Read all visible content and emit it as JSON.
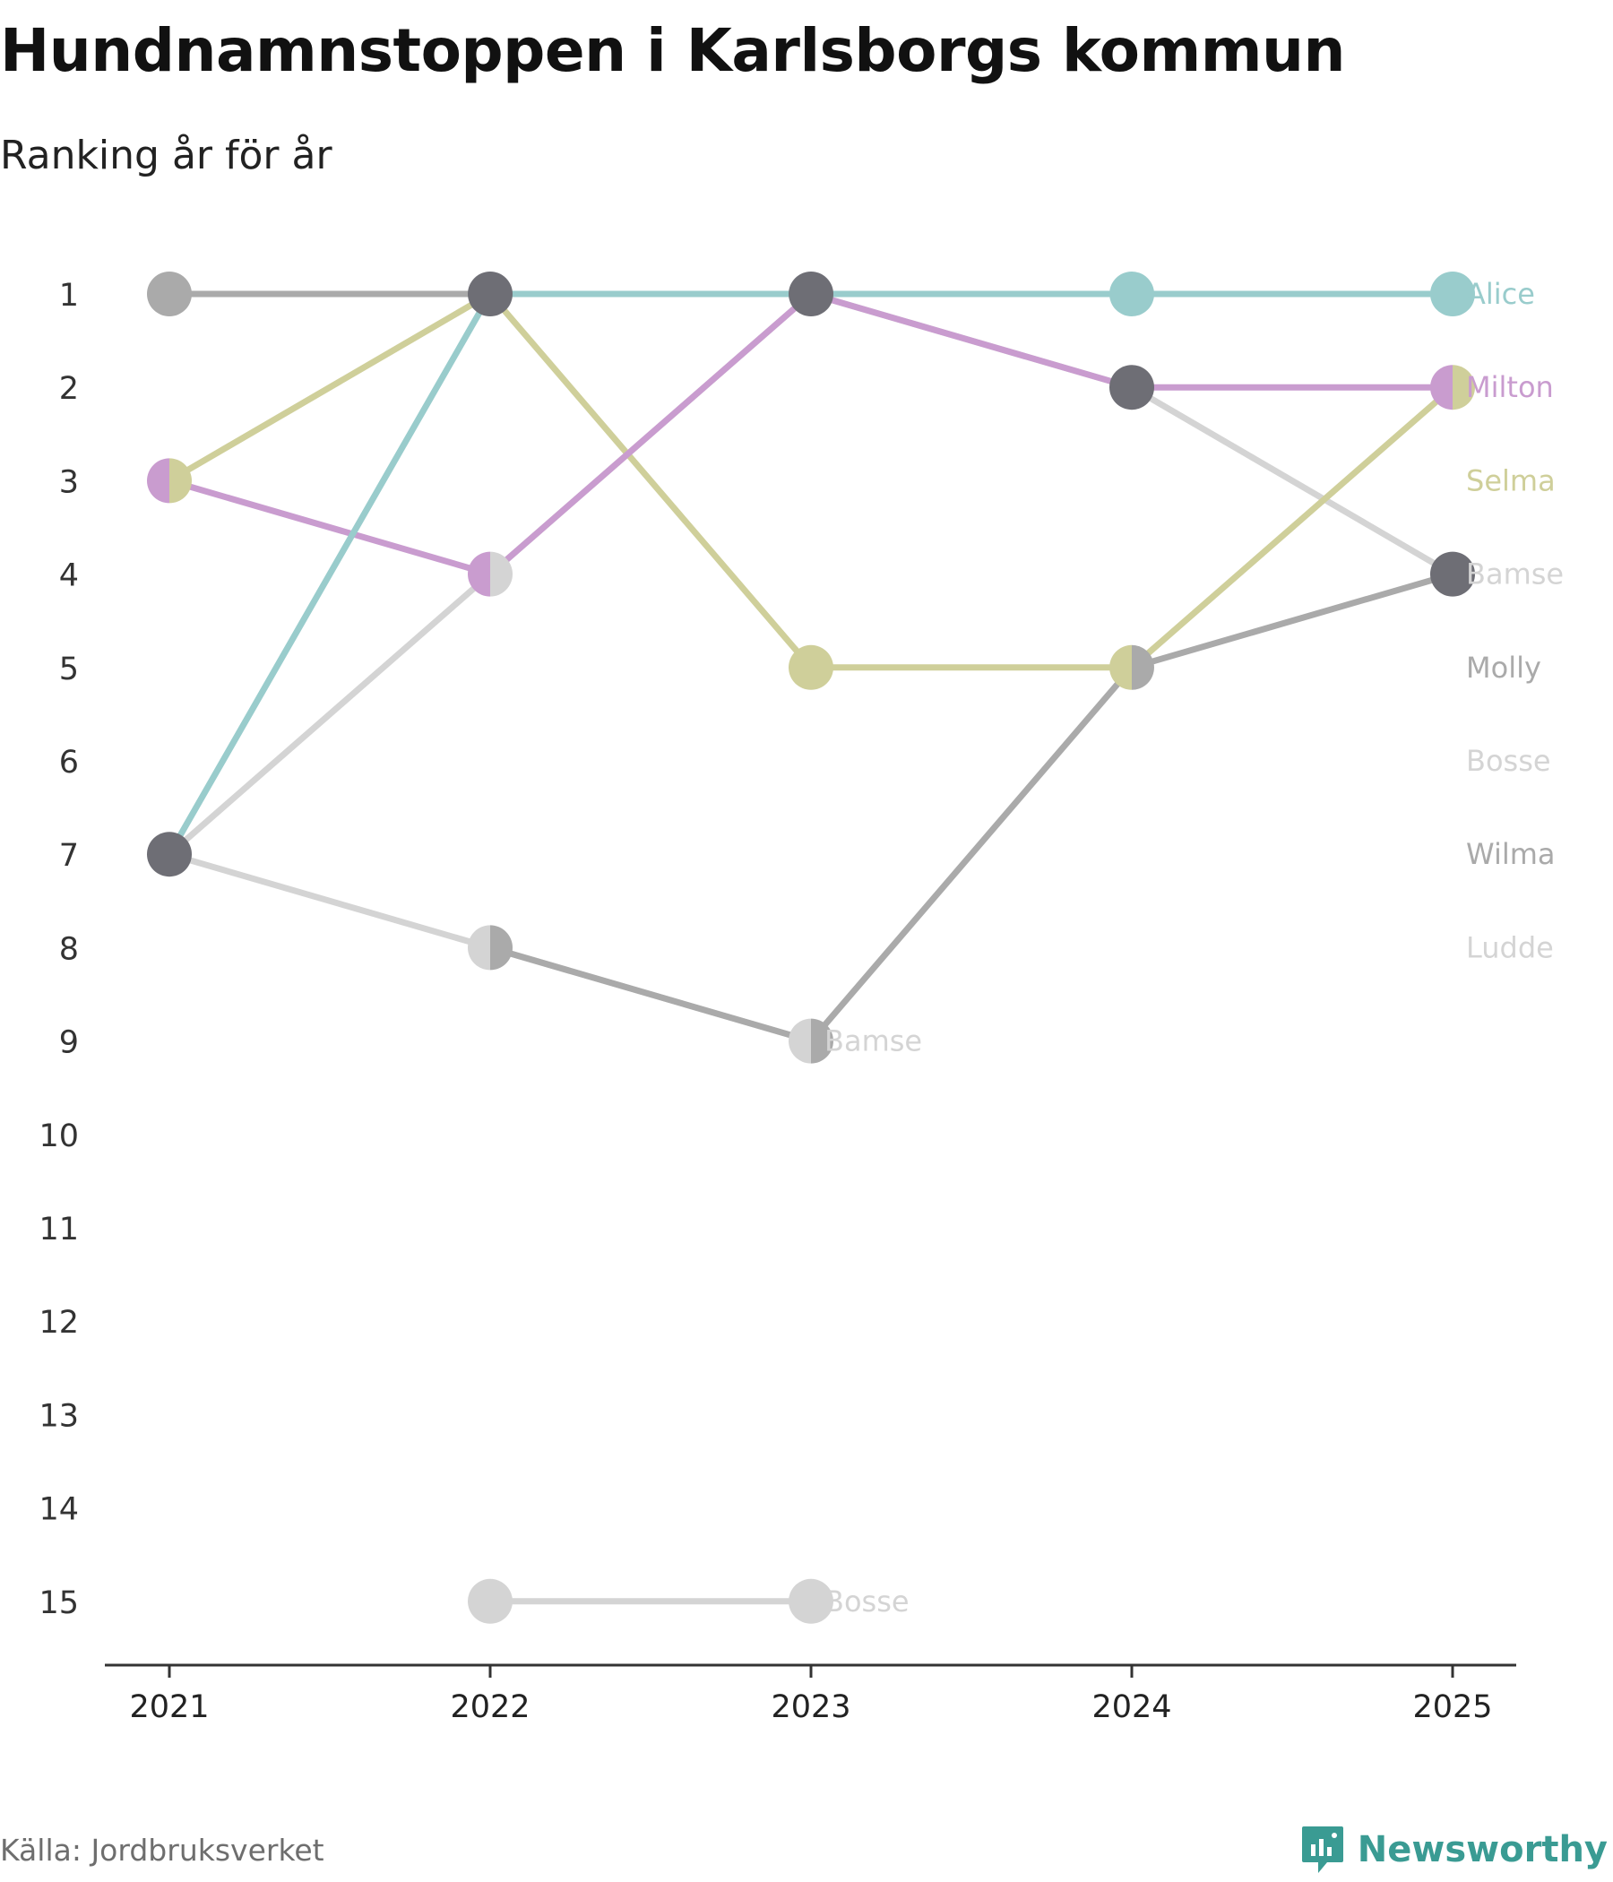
{
  "title": "Hundnamnstoppen i Karlsborgs kommun",
  "subtitle": "Ranking år för år",
  "source": "Källa: Jordbruksverket",
  "brand": {
    "name": "Newsworthy",
    "icon": "newsworthy-logo-icon",
    "color": "#3a9b93"
  },
  "chart_data": {
    "type": "line",
    "variant": "bump",
    "title": "Hundnamnstoppen i Karlsborgs kommun",
    "subtitle": "Ranking år för år",
    "xlabel": "",
    "ylabel": "",
    "x": [
      "2021",
      "2022",
      "2023",
      "2024",
      "2025"
    ],
    "y_ticks": [
      "1",
      "2",
      "3",
      "4",
      "5",
      "6",
      "7",
      "8",
      "9",
      "10",
      "11",
      "12",
      "13",
      "14",
      "15"
    ],
    "ylim": [
      1,
      15
    ],
    "y_inverted": true,
    "grid": false,
    "series": [
      {
        "name": "Ludde",
        "color": "#d4d4d4",
        "values": [
          7,
          8,
          9,
          null,
          null
        ]
      },
      {
        "name": "Bosse",
        "color": "#d4d4d4",
        "values": [
          7,
          4,
          1,
          2,
          4
        ]
      },
      {
        "name": "Bosse",
        "color": "#d4d4d4",
        "values": [
          null,
          15,
          15,
          null,
          null
        ]
      },
      {
        "name": "Wilma",
        "color": "#aaaaaa",
        "values": [
          1,
          1,
          null,
          null,
          null
        ]
      },
      {
        "name": "Molly",
        "color": "#aaaaaa",
        "values": [
          null,
          8,
          9,
          5,
          4
        ]
      },
      {
        "name": "Selma",
        "color": "#cfcf9a",
        "values": [
          3,
          1,
          5,
          5,
          2
        ]
      },
      {
        "name": "Milton",
        "color": "#c99ccf",
        "values": [
          3,
          4,
          1,
          2,
          2
        ]
      },
      {
        "name": "Alice",
        "color": "#99cccc",
        "values": [
          7,
          1,
          1,
          1,
          1
        ]
      }
    ],
    "markers": [
      {
        "x": "2021",
        "y": 1,
        "colors": [
          "#aaaaaa"
        ]
      },
      {
        "x": "2021",
        "y": 3,
        "colors": [
          "#c99ccf",
          "#cfcf9a"
        ]
      },
      {
        "x": "2021",
        "y": 7,
        "colors": [
          "#6e6e75"
        ]
      },
      {
        "x": "2022",
        "y": 1,
        "colors": [
          "#6e6e75"
        ]
      },
      {
        "x": "2022",
        "y": 4,
        "colors": [
          "#c99ccf",
          "#d4d4d4"
        ]
      },
      {
        "x": "2022",
        "y": 8,
        "colors": [
          "#d4d4d4",
          "#aaaaaa"
        ]
      },
      {
        "x": "2022",
        "y": 15,
        "colors": [
          "#d4d4d4"
        ]
      },
      {
        "x": "2023",
        "y": 1,
        "colors": [
          "#6e6e75"
        ]
      },
      {
        "x": "2023",
        "y": 5,
        "colors": [
          "#cfcf9a"
        ]
      },
      {
        "x": "2023",
        "y": 9,
        "colors": [
          "#d4d4d4",
          "#aaaaaa"
        ]
      },
      {
        "x": "2023",
        "y": 15,
        "colors": [
          "#d4d4d4"
        ]
      },
      {
        "x": "2024",
        "y": 1,
        "colors": [
          "#99cccc"
        ]
      },
      {
        "x": "2024",
        "y": 2,
        "colors": [
          "#6e6e75"
        ]
      },
      {
        "x": "2024",
        "y": 5,
        "colors": [
          "#cfcf9a",
          "#aaaaaa"
        ]
      },
      {
        "x": "2025",
        "y": 1,
        "colors": [
          "#99cccc"
        ]
      },
      {
        "x": "2025",
        "y": 2,
        "colors": [
          "#c99ccf",
          "#cfcf9a"
        ]
      },
      {
        "x": "2025",
        "y": 4,
        "colors": [
          "#6e6e75"
        ]
      }
    ],
    "end_labels": [
      {
        "text": "Alice",
        "y": 1,
        "color": "#99cccc"
      },
      {
        "text": "Milton",
        "y": 2,
        "color": "#c99ccf"
      },
      {
        "text": "Selma",
        "y": 3,
        "color": "#cfcf9a"
      },
      {
        "text": "Bamse",
        "y": 4,
        "color": "#d4d4d4"
      },
      {
        "text": "Molly",
        "y": 5,
        "color": "#aaaaaa"
      },
      {
        "text": "Bosse",
        "y": 6,
        "color": "#d4d4d4"
      },
      {
        "text": "Wilma",
        "y": 7,
        "color": "#aaaaaa"
      },
      {
        "text": "Ludde",
        "y": 8,
        "color": "#d4d4d4"
      }
    ],
    "inline_labels": [
      {
        "text": "Bamse",
        "x": "2023",
        "y": 9,
        "color": "#d4d4d4"
      },
      {
        "text": "Bosse",
        "x": "2023",
        "y": 15,
        "color": "#d4d4d4"
      }
    ]
  }
}
